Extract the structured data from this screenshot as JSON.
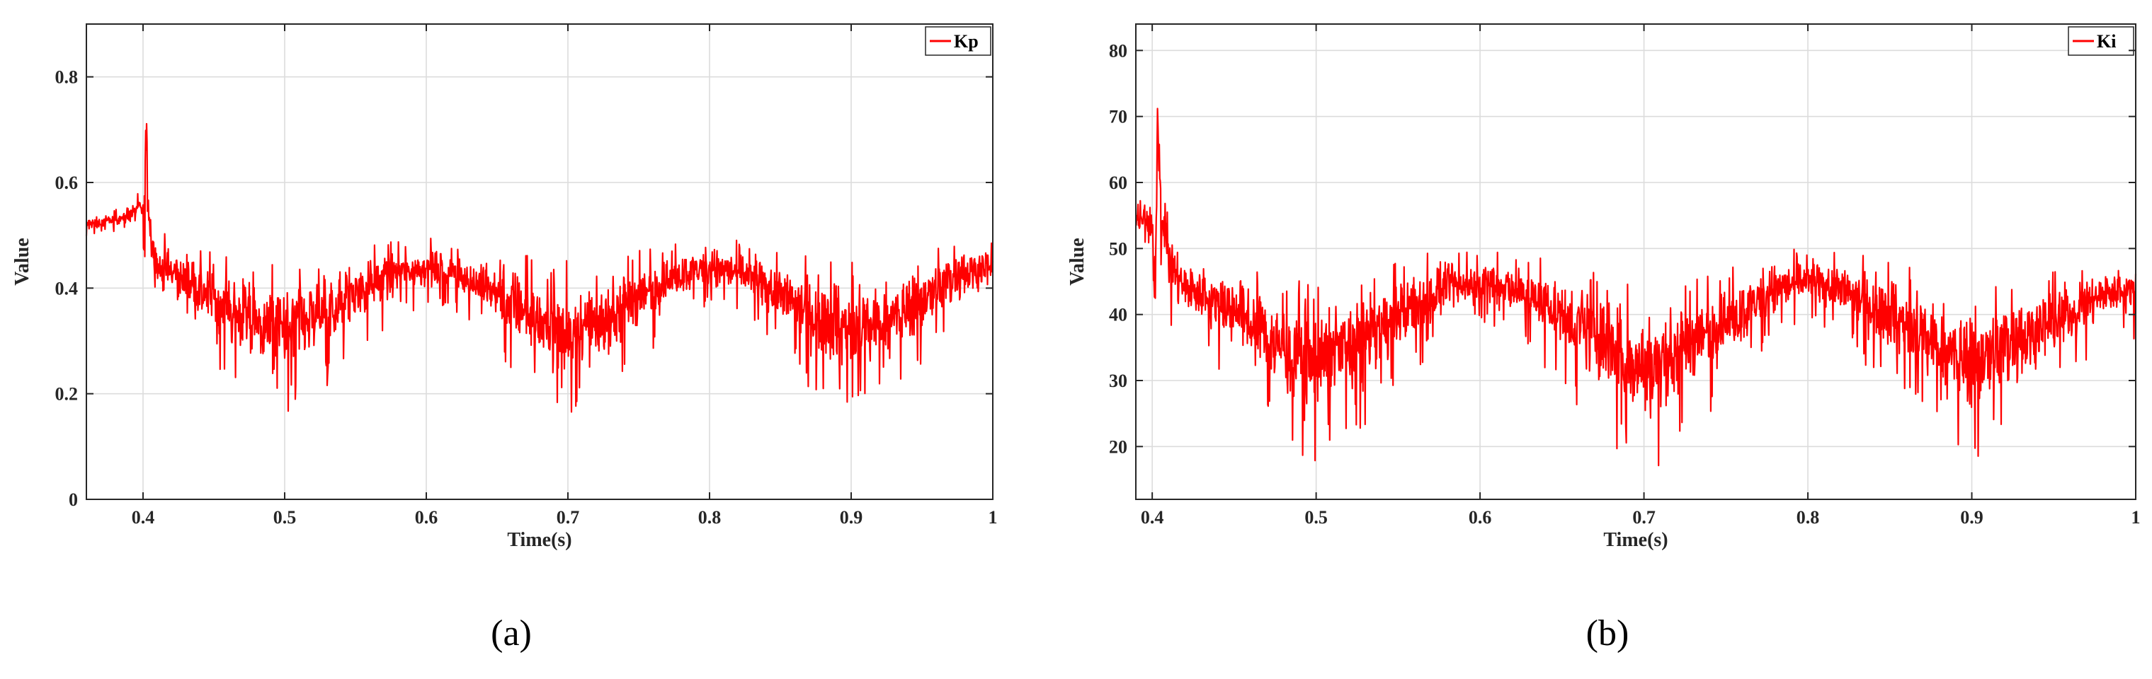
{
  "colors": {
    "series": "#ff0000",
    "axis": "#262626",
    "grid": "#dcdcdc"
  },
  "chart_data": [
    {
      "type": "line",
      "panel_label": "(a)",
      "xlabel": "Time(s)",
      "ylabel": "Value",
      "xlim": [
        0.36,
        1.0
      ],
      "ylim": [
        0,
        0.9
      ],
      "xticks": [
        0.4,
        0.5,
        0.6,
        0.7,
        0.8,
        0.9,
        1
      ],
      "xtick_labels": [
        "0.4",
        "0.5",
        "0.6",
        "0.7",
        "0.8",
        "0.9",
        "1"
      ],
      "yticks": [
        0,
        0.2,
        0.4,
        0.6,
        0.8
      ],
      "ytick_labels": [
        "0",
        "0.2",
        "0.4",
        "0.6",
        "0.8"
      ],
      "grid": true,
      "legend_position": "top-right",
      "series": [
        {
          "name": "Kp",
          "color": "#ff0000",
          "x": [
            0.36,
            0.38,
            0.4,
            0.4005,
            0.402,
            0.403,
            0.404,
            0.406,
            0.41,
            0.42,
            0.45,
            0.48,
            0.5,
            0.52,
            0.55,
            0.58,
            0.6,
            0.62,
            0.65,
            0.68,
            0.7,
            0.72,
            0.75,
            0.78,
            0.8,
            0.82,
            0.85,
            0.88,
            0.9,
            0.92,
            0.95,
            0.98,
            1.0
          ],
          "center": [
            0.52,
            0.53,
            0.55,
            0.42,
            0.7,
            0.62,
            0.55,
            0.48,
            0.44,
            0.43,
            0.38,
            0.33,
            0.32,
            0.34,
            0.39,
            0.43,
            0.44,
            0.43,
            0.39,
            0.34,
            0.32,
            0.33,
            0.38,
            0.43,
            0.44,
            0.43,
            0.39,
            0.34,
            0.32,
            0.33,
            0.38,
            0.43,
            0.44
          ],
          "band": [
            0.015,
            0.015,
            0.03,
            0.12,
            0.13,
            0.1,
            0.08,
            0.06,
            0.06,
            0.06,
            0.08,
            0.1,
            0.11,
            0.1,
            0.08,
            0.05,
            0.05,
            0.05,
            0.07,
            0.1,
            0.11,
            0.1,
            0.08,
            0.05,
            0.05,
            0.05,
            0.07,
            0.1,
            0.11,
            0.1,
            0.08,
            0.06,
            0.05
          ]
        }
      ]
    },
    {
      "type": "line",
      "panel_label": "(b)",
      "xlabel": "Time(s)",
      "ylabel": "Value",
      "xlim": [
        0.39,
        1.0
      ],
      "ylim": [
        12,
        84
      ],
      "xticks": [
        0.4,
        0.5,
        0.6,
        0.7,
        0.8,
        0.9,
        1
      ],
      "xtick_labels": [
        "0.4",
        "0.5",
        "0.6",
        "0.7",
        "0.8",
        "0.9",
        "1"
      ],
      "yticks": [
        20,
        30,
        40,
        50,
        60,
        70,
        80
      ],
      "ytick_labels": [
        "20",
        "30",
        "40",
        "50",
        "60",
        "70",
        "80"
      ],
      "grid": true,
      "legend_position": "top-right",
      "series": [
        {
          "name": "Ki",
          "color": "#ff0000",
          "x": [
            0.39,
            0.395,
            0.4,
            0.402,
            0.403,
            0.404,
            0.406,
            0.41,
            0.42,
            0.45,
            0.48,
            0.5,
            0.52,
            0.55,
            0.58,
            0.6,
            0.62,
            0.65,
            0.68,
            0.7,
            0.72,
            0.75,
            0.78,
            0.8,
            0.82,
            0.85,
            0.88,
            0.9,
            0.92,
            0.95,
            0.98,
            1.0
          ],
          "center": [
            54,
            55,
            52,
            45,
            72,
            65,
            56,
            48,
            44,
            41,
            35,
            33,
            35,
            40,
            44,
            45,
            44,
            40,
            35,
            32,
            34,
            39,
            44,
            45,
            44,
            40,
            35,
            33,
            35,
            39,
            43,
            44
          ],
          "band": [
            2,
            3,
            5,
            14,
            12,
            10,
            8,
            6,
            6,
            7,
            9,
            10,
            9,
            7,
            5,
            4,
            5,
            7,
            9,
            11,
            9,
            7,
            5,
            4,
            5,
            7,
            9,
            10,
            9,
            7,
            5,
            5
          ]
        }
      ]
    }
  ]
}
